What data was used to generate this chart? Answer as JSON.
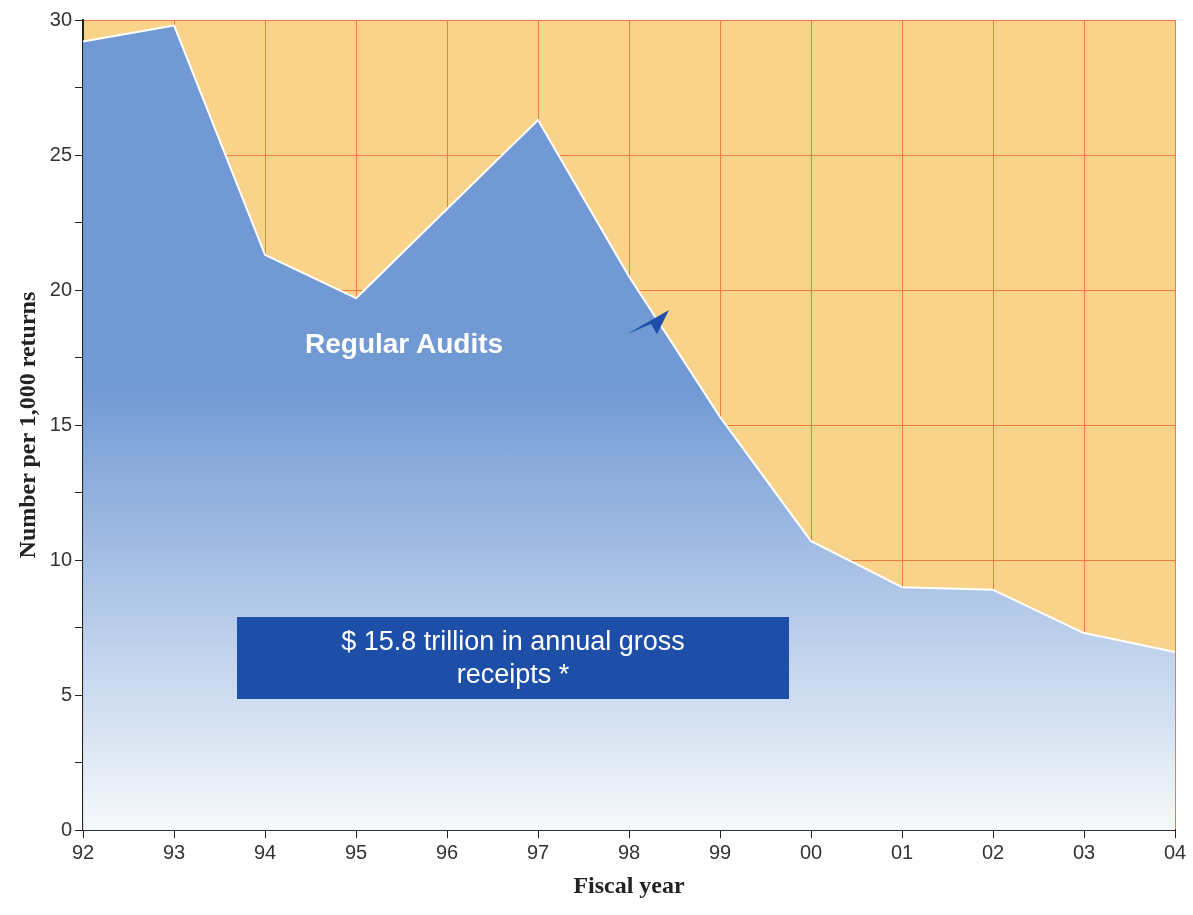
{
  "chart_data": {
    "type": "area",
    "xlabel": "Fiscal year",
    "ylabel": "Number per 1,000 returns",
    "categories": [
      "92",
      "93",
      "94",
      "95",
      "96",
      "97",
      "98",
      "99",
      "00",
      "01",
      "02",
      "03",
      "04"
    ],
    "series": [
      {
        "name": "Regular Audits",
        "color": "#7199d4",
        "values": [
          29.2,
          29.8,
          21.3,
          19.7,
          23.0,
          26.3,
          20.5,
          15.3,
          10.7,
          9.0,
          8.9,
          7.3,
          6.6
        ]
      }
    ],
    "ylim": [
      0,
      30
    ],
    "yticks": [
      0,
      {
        "value": 2.5,
        "label": null
      },
      5,
      {
        "value": 7.5,
        "label": null
      },
      10,
      {
        "value": 12.5,
        "label": null
      },
      15,
      {
        "value": 17.5,
        "label": null
      },
      20,
      {
        "value": 22.5,
        "label": null
      },
      25,
      {
        "value": 27.5,
        "label": null
      },
      30
    ],
    "grid": true,
    "legend": false,
    "marker": "none",
    "line_style": "solid",
    "annotations": [
      "$ 15.8 trillion in annual gross receipts *"
    ]
  }
}
